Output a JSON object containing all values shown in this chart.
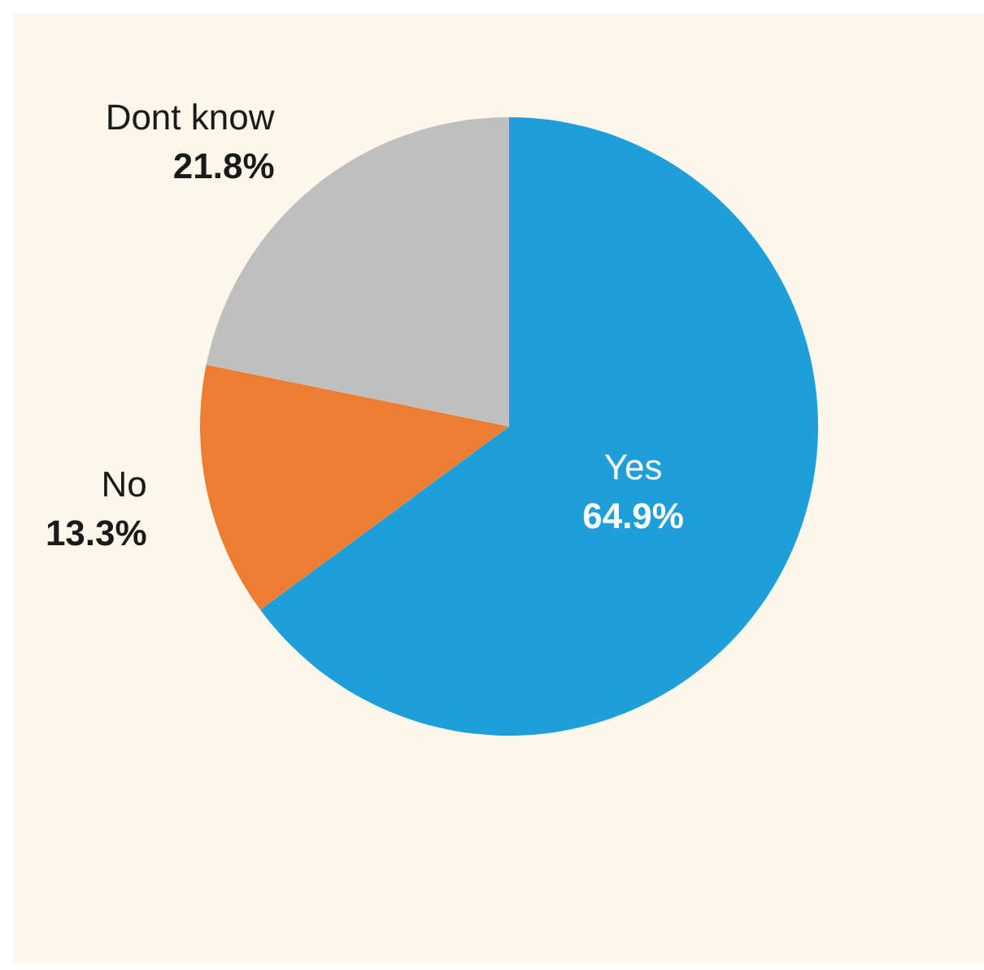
{
  "chart_data": {
    "type": "pie",
    "categories": [
      "Yes",
      "No",
      "Dont know"
    ],
    "values": [
      64.9,
      13.3,
      21.8
    ],
    "colors": [
      "#1f9fda",
      "#ed7d31",
      "#bfbfbf"
    ],
    "value_labels": [
      "64.9%",
      "13.3%",
      "21.8%"
    ],
    "legend": false
  }
}
